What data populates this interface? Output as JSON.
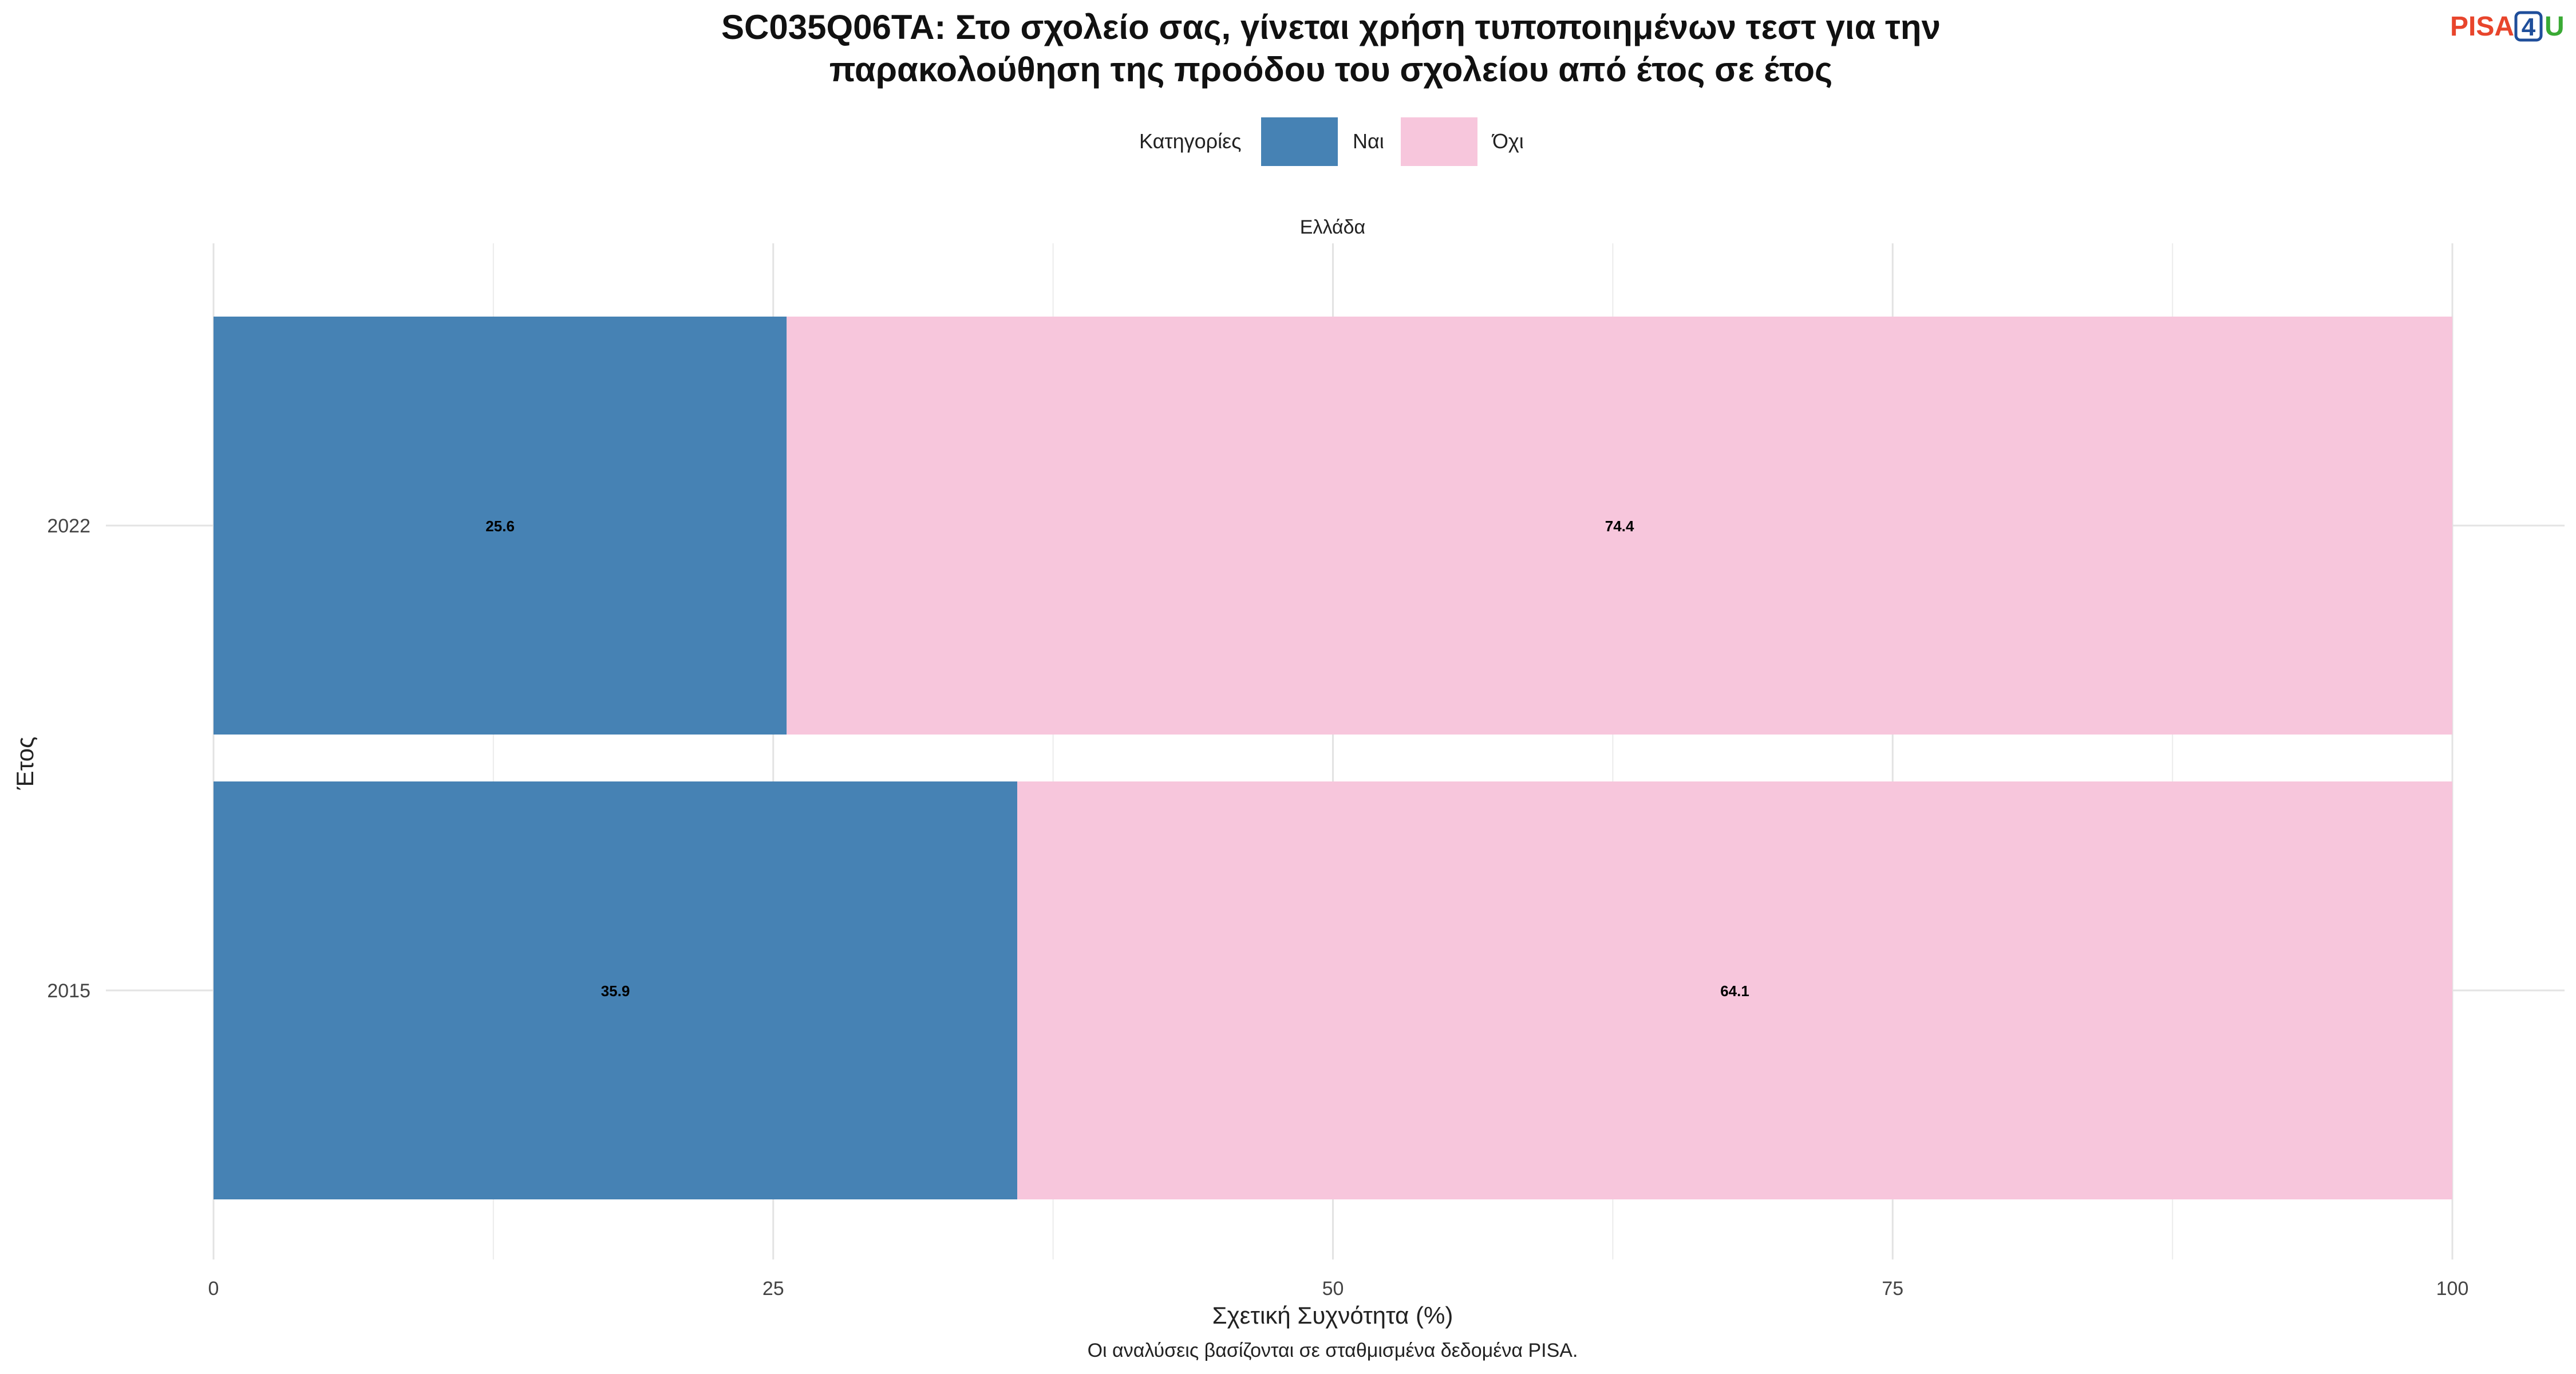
{
  "chart_data": {
    "type": "bar",
    "orientation": "horizontal",
    "stacked": true,
    "title_line1": "SC035Q06TA: Στο σχολείο σας, γίνεται χρήση τυποποιημένων τεστ για την",
    "title_line2": "παρακολούθηση της προόδου του σχολείου από έτος σε έτος",
    "legend_title": "Κατηγορίες",
    "legend_position": "top",
    "facet_label": "Ελλάδα",
    "categories": [
      "2022",
      "2015"
    ],
    "series": [
      {
        "name": "Ναι",
        "values": [
          25.6,
          35.9
        ],
        "color": "#4682b4"
      },
      {
        "name": "Όχι",
        "values": [
          74.4,
          64.1
        ],
        "color": "#f7c6dc"
      }
    ],
    "value_labels": [
      [
        "25.6",
        "35.9"
      ],
      [
        "74.4",
        "64.1"
      ]
    ],
    "xlabel": "Σχετική Συχνότητα (%)",
    "ylabel": "Έτος",
    "xlim": [
      0,
      100
    ],
    "x_ticks": [
      "0",
      "25",
      "50",
      "75",
      "100"
    ],
    "grid": true,
    "caption": "Οι αναλύσεις βασίζονται σε σταθμισμένα δεδομένα PISA."
  },
  "logo": {
    "text_left": "PISA",
    "text_mid": "4",
    "text_right": "U",
    "color_left": "#e8452c",
    "color_mid": "#1f4e9a",
    "color_right": "#3aaa35"
  }
}
